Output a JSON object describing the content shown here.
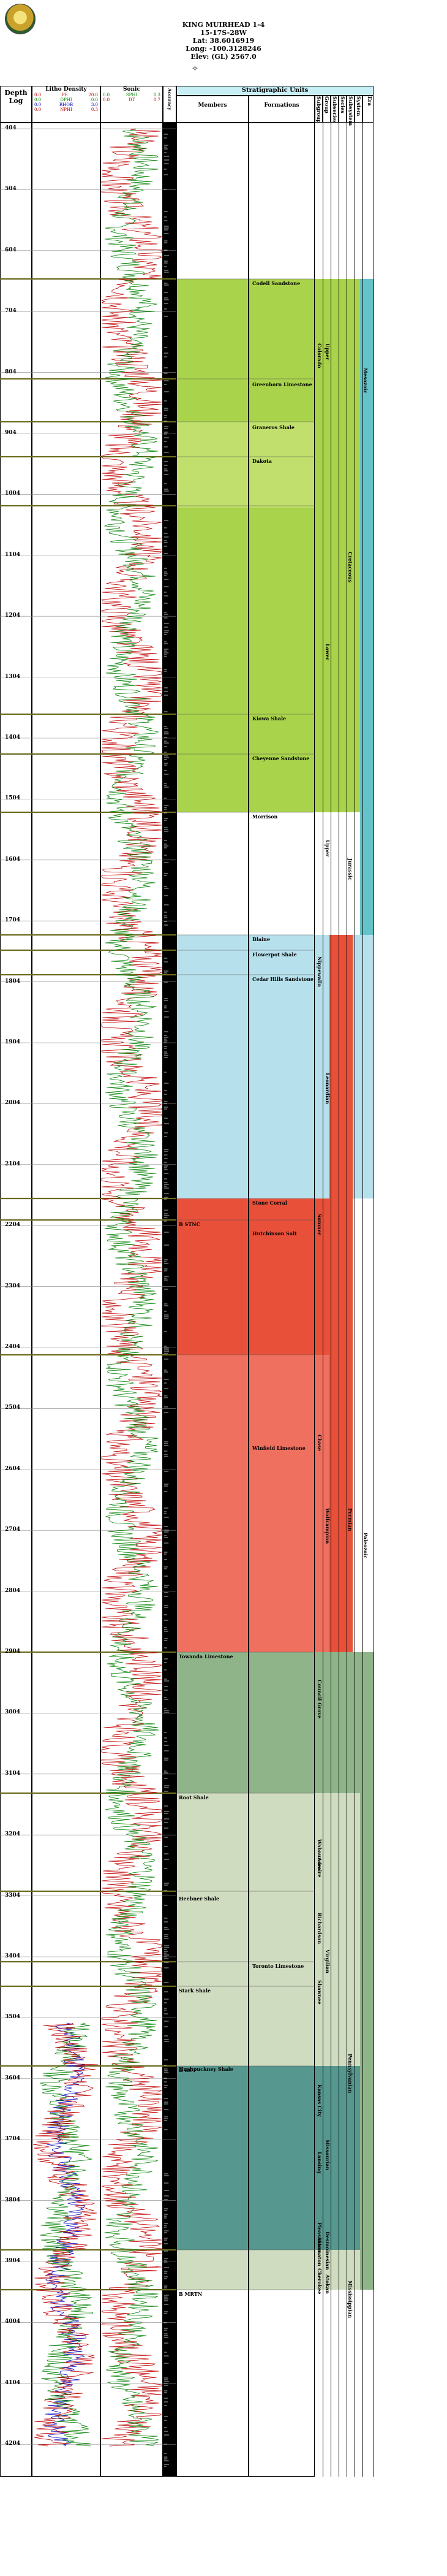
{
  "header": {
    "well_name": "KING MUIRHEAD 1-4",
    "location": "15-17S-28W",
    "lat": "Lat: 38.6016919",
    "long": "Long: -100.3128246",
    "elev": "Elev: (GL) 2567.0"
  },
  "columns": {
    "depth_top": "Depth",
    "depth_bottom": "Log",
    "litho_density": "Litho Density",
    "sonic": "Sonic",
    "accuracy": "Accuracy",
    "strat_units": "Stratigraphic Units",
    "members": "Members",
    "formations": "Formations",
    "subgroup": "Subgroup",
    "group": "Group",
    "subseries": "Subseries",
    "series": "Series",
    "subsystem": "Subsystem",
    "system": "System",
    "era": "Era"
  },
  "litho_legend": [
    {
      "left": "0.0",
      "name": "PE",
      "right": "20.0",
      "color": "#c00000"
    },
    {
      "left": "0.0",
      "name": "DPHI",
      "right": "0.0",
      "color": "#008000"
    },
    {
      "left": "0.0",
      "name": "RHOB",
      "right": "3.0",
      "color": "#0000c0"
    },
    {
      "left": "0.0",
      "name": "NPHI",
      "right": "0.3",
      "color": "#c00000"
    }
  ],
  "sonic_legend": [
    {
      "left": "0.0",
      "name": "SPHI",
      "right": "0.3",
      "color": "#008000"
    },
    {
      "left": "0.0",
      "name": "DT",
      "right": "0.7",
      "color": "#c00000"
    }
  ],
  "depth_labels": [
    "404",
    "504",
    "604",
    "704",
    "804",
    "904",
    "1004",
    "1104",
    "1204",
    "1304",
    "1404",
    "1504",
    "1604",
    "1704",
    "1804",
    "1904",
    "2004",
    "2104",
    "2204",
    "2304",
    "2404",
    "2504",
    "2604",
    "2704",
    "2804",
    "2904",
    "3004",
    "3104",
    "3204",
    "3304",
    "3404",
    "3504",
    "3604",
    "3704",
    "3804",
    "3904",
    "4004",
    "4104",
    "4204"
  ],
  "members": [
    {
      "label": "Codell Sandstone"
    },
    {
      "label": "Greenhorn Limestone"
    },
    {
      "label": "Graneros Shale"
    },
    {
      "label": "Dakota"
    },
    {
      "label": "Kiowa Shale"
    },
    {
      "label": "Cheyenne Sandstone"
    },
    {
      "label": "Morrison"
    },
    {
      "label": "Blaine"
    },
    {
      "label": "Flowerpot Shale"
    },
    {
      "label": "Cedar Hills Sandstone"
    },
    {
      "label": "Stone Corral"
    },
    {
      "label": "B STNC"
    },
    {
      "label": "Hutchinson Salt"
    },
    {
      "label": "Winfield Limestone"
    },
    {
      "label": "Towanda Limestone"
    },
    {
      "label": "Root Shale"
    },
    {
      "label": "Heebner Shale"
    },
    {
      "label": "Toronto Limestone"
    },
    {
      "label": "Stark Shale"
    },
    {
      "label": "Hushpuckney Shale"
    },
    {
      "label": "B KC"
    },
    {
      "label": "B MRTN"
    }
  ],
  "strat_vertical": [
    {
      "label": "Colorado"
    },
    {
      "label": "Upper"
    },
    {
      "label": "Lower"
    },
    {
      "label": "Cretaceous"
    },
    {
      "label": "Mesozoic"
    },
    {
      "label": "Upper"
    },
    {
      "label": "Jurassic"
    },
    {
      "label": "Nippewalla"
    },
    {
      "label": "Leonardian"
    },
    {
      "label": "Sumner"
    },
    {
      "label": "Chase"
    },
    {
      "label": "Wolfcampian"
    },
    {
      "label": "Permian"
    },
    {
      "label": "Paleozoic"
    },
    {
      "label": "Council Grove"
    },
    {
      "label": "Admire"
    },
    {
      "label": "Wabaunsee"
    },
    {
      "label": "Richardson"
    },
    {
      "label": "Shawnee"
    },
    {
      "label": "Virgilian"
    },
    {
      "label": "Kansas City"
    },
    {
      "label": "Lansing"
    },
    {
      "label": "Missourian"
    },
    {
      "label": "Pleasanton"
    },
    {
      "label": "Marmaton"
    },
    {
      "label": "Desmoinesian"
    },
    {
      "label": "Pennsylvanian"
    },
    {
      "label": "Cherokee"
    },
    {
      "label": "Atokan"
    },
    {
      "label": "Mississippian"
    }
  ],
  "colors": {
    "cretaceous": "#a9d34b",
    "jurassic": "#8fcf60",
    "permian_light": "#b6e0ec",
    "permian_red": "#e8503a",
    "permian_salmon": "#f2806e",
    "penn_green": "#8fb48a",
    "penn_light": "#cfdcc0",
    "miss_teal": "#56988f",
    "era_teal": "#63c3c8"
  }
}
